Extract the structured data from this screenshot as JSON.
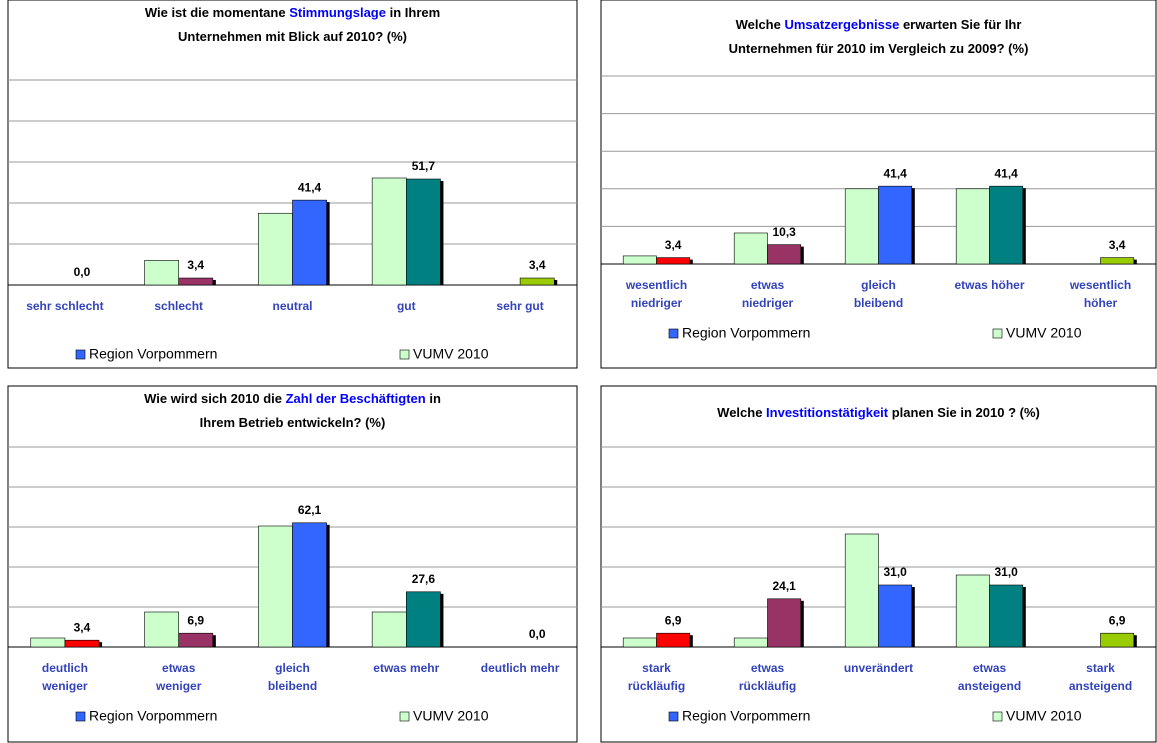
{
  "chart_data": [
    {
      "type": "bar",
      "title_lines": [
        [
          {
            "text": "Wie ist die momentane "
          },
          {
            "text": "Stimmungslage",
            "color": "#0000ff"
          },
          {
            "text": " in Ihrem"
          }
        ],
        [
          {
            "text": "Unternehmen mit Blick auf 2010? (%)"
          }
        ]
      ],
      "categories": [
        [
          "sehr schlecht"
        ],
        [
          "schlecht"
        ],
        [
          "neutral"
        ],
        [
          "gut"
        ],
        [
          "sehr gut"
        ]
      ],
      "series": [
        {
          "name": "Region Vorpommern",
          "color": "#3366ff",
          "colors": [
            "#ff0000",
            "#993366",
            "#3366ff",
            "#008080",
            "#99cc00"
          ],
          "values": [
            0,
            3.4,
            41.4,
            51.7,
            3.4
          ],
          "value_labels": [
            "0,0",
            "3,4",
            "41,4",
            "51,7",
            "3,4"
          ]
        },
        {
          "name": "VUMV 2010",
          "color": "#ccffcc",
          "values": [
            0,
            12,
            35,
            52.2,
            0
          ]
        }
      ],
      "ylim": [
        0,
        100
      ],
      "yticks": [
        0,
        20,
        40,
        60,
        80,
        100
      ],
      "grid": true
    },
    {
      "type": "bar",
      "title_lines": [
        [
          {
            "text": "Welche "
          },
          {
            "text": "Umsatzergebnisse",
            "color": "#0000ff"
          },
          {
            "text": " erwarten Sie für Ihr"
          }
        ],
        [
          {
            "text": "Unternehmen für 2010 im Vergleich zu 2009? (%)"
          }
        ]
      ],
      "categories": [
        [
          "wesentlich",
          "niedriger"
        ],
        [
          "etwas",
          "niedriger"
        ],
        [
          "gleich",
          "bleibend"
        ],
        [
          "etwas höher"
        ],
        [
          "wesentlich",
          "höher"
        ]
      ],
      "series": [
        {
          "name": "Region Vorpommern",
          "color": "#3366ff",
          "colors": [
            "#ff0000",
            "#993366",
            "#3366ff",
            "#008080",
            "#99cc00"
          ],
          "values": [
            3.4,
            10.3,
            41.4,
            41.4,
            3.4
          ],
          "value_labels": [
            "3,4",
            "10,3",
            "41,4",
            "41,4",
            "3,4"
          ]
        },
        {
          "name": "VUMV 2010",
          "color": "#ccffcc",
          "values": [
            4.3,
            16.5,
            40,
            40,
            0
          ]
        }
      ],
      "ylim": [
        0,
        100
      ],
      "yticks": [
        0,
        20,
        40,
        60,
        80,
        100
      ],
      "grid": true
    },
    {
      "type": "bar",
      "title_lines": [
        [
          {
            "text": "Wie wird sich 2010 die "
          },
          {
            "text": "Zahl der Beschäftigten",
            "color": "#0000ff"
          },
          {
            "text": " in"
          }
        ],
        [
          {
            "text": "Ihrem Betrieb entwickeln? (%)"
          }
        ]
      ],
      "categories": [
        [
          "deutlich",
          "weniger"
        ],
        [
          "etwas",
          "weniger"
        ],
        [
          "gleich",
          "bleibend"
        ],
        [
          "etwas mehr"
        ],
        [
          "deutlich mehr"
        ]
      ],
      "series": [
        {
          "name": "Region Vorpommern",
          "color": "#3366ff",
          "colors": [
            "#ff0000",
            "#993366",
            "#3366ff",
            "#008080",
            "#99cc00"
          ],
          "values": [
            3.4,
            6.9,
            62.1,
            27.6,
            0
          ],
          "value_labels": [
            "3,4",
            "6,9",
            "62,1",
            "27,6",
            "0,0"
          ]
        },
        {
          "name": "VUMV 2010",
          "color": "#ccffcc",
          "values": [
            4.5,
            17.5,
            60.5,
            17.5,
            0
          ]
        }
      ],
      "ylim": [
        0,
        100
      ],
      "yticks": [
        0,
        20,
        40,
        60,
        80,
        100
      ],
      "grid": true
    },
    {
      "type": "bar",
      "title_lines": [
        [
          {
            "text": "Welche "
          },
          {
            "text": "Investitionstätigkeit",
            "color": "#0000ff"
          },
          {
            "text": " planen Sie in 2010 ? (%)"
          }
        ]
      ],
      "categories": [
        [
          "stark",
          "rückläufig"
        ],
        [
          "etwas",
          "rückläufig"
        ],
        [
          "unverändert"
        ],
        [
          "etwas",
          "ansteigend"
        ],
        [
          "stark",
          "ansteigend"
        ]
      ],
      "series": [
        {
          "name": "Region Vorpommern",
          "color": "#3366ff",
          "colors": [
            "#ff0000",
            "#993366",
            "#3366ff",
            "#008080",
            "#99cc00"
          ],
          "values": [
            6.9,
            24.1,
            31.0,
            31.0,
            6.9
          ],
          "value_labels": [
            "6,9",
            "24,1",
            "31,0",
            "31,0",
            "6,9"
          ]
        },
        {
          "name": "VUMV 2010",
          "color": "#ccffcc",
          "values": [
            4.5,
            4.5,
            56.5,
            36,
            0
          ]
        }
      ],
      "ylim": [
        0,
        100
      ],
      "yticks": [
        0,
        20,
        40,
        60,
        80,
        100
      ],
      "grid": true
    }
  ]
}
